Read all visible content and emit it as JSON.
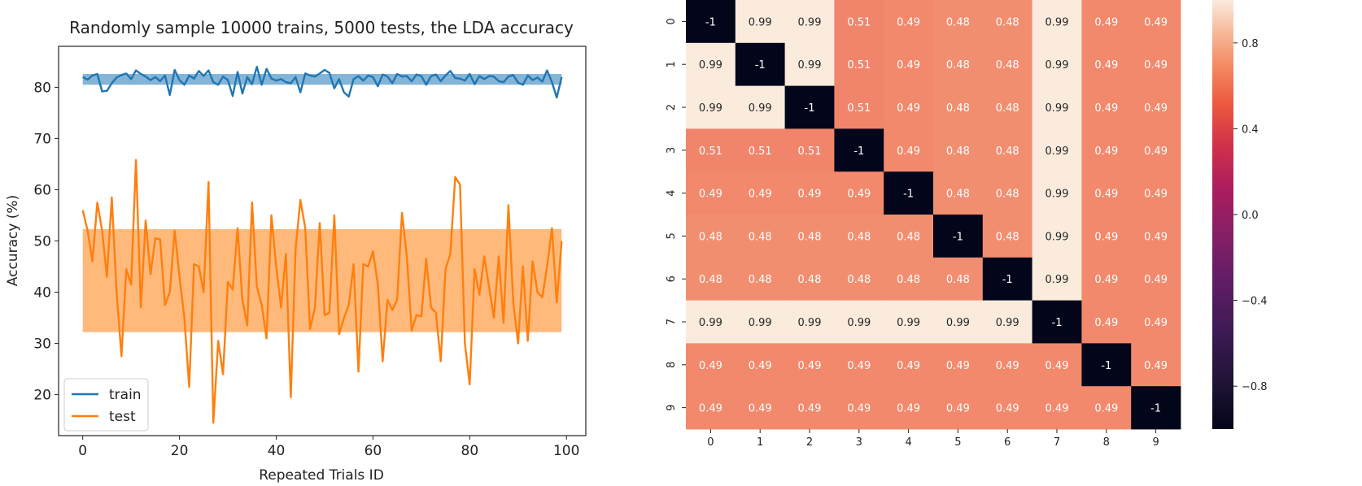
{
  "chart_data": [
    {
      "type": "line",
      "title": "Randomly sample 10000 trains, 5000 tests, the LDA accuracy",
      "xlabel": "Repeated Trials ID",
      "ylabel": "Accuracy (%)",
      "xlim": [
        -5,
        104
      ],
      "ylim": [
        12,
        88
      ],
      "xticks": [
        0,
        20,
        40,
        60,
        80,
        100
      ],
      "yticks": [
        20,
        30,
        40,
        50,
        60,
        70,
        80
      ],
      "legend_position": "lower-left",
      "series": [
        {
          "name": "train",
          "color": "#1f77b4",
          "band": [
            80.5,
            82.6
          ],
          "values": [
            82.0,
            81.5,
            82.3,
            82.6,
            79.2,
            79.3,
            80.8,
            81.9,
            82.4,
            82.7,
            81.6,
            83.3,
            82.6,
            82.1,
            81.4,
            82.0,
            81.2,
            82.3,
            78.5,
            83.4,
            81.4,
            80.5,
            82.3,
            81.7,
            83.2,
            82.2,
            83.3,
            81.0,
            80.5,
            82.1,
            81.4,
            78.3,
            83.0,
            78.8,
            82.0,
            80.6,
            84.0,
            80.5,
            83.6,
            81.7,
            81.3,
            81.6,
            81.0,
            80.8,
            82.0,
            79.0,
            82.7,
            82.3,
            82.1,
            82.7,
            83.4,
            82.8,
            79.8,
            81.6,
            79.0,
            78.2,
            81.6,
            82.2,
            81.3,
            82.3,
            82.0,
            80.2,
            82.5,
            82.1,
            80.8,
            82.6,
            82.1,
            82.2,
            81.2,
            82.5,
            82.2,
            80.5,
            82.2,
            82.5,
            81.2,
            82.3,
            83.2,
            81.8,
            81.7,
            81.3,
            82.6,
            80.6,
            82.2,
            81.6,
            82.2,
            82.1,
            81.2,
            81.0,
            82.1,
            82.4,
            80.9,
            80.5,
            82.3,
            81.4,
            81.9,
            81.1,
            83.3,
            81.0,
            78.0,
            82.0
          ]
        },
        {
          "name": "test",
          "color": "#ff7f0e",
          "band": [
            32.2,
            52.3
          ],
          "values": [
            56.0,
            52.0,
            46.0,
            57.5,
            52.0,
            43.0,
            58.5,
            40.0,
            27.5,
            44.5,
            41.5,
            65.8,
            37.0,
            54.0,
            43.5,
            50.5,
            50.3,
            37.5,
            40.0,
            52.0,
            43.0,
            35.0,
            21.5,
            45.5,
            45.0,
            40.0,
            61.5,
            14.5,
            30.5,
            24.0,
            42.0,
            40.5,
            52.5,
            38.5,
            33.5,
            57.5,
            41.0,
            37.5,
            31.0,
            55.0,
            45.0,
            37.0,
            47.5,
            19.5,
            48.5,
            58.0,
            52.5,
            32.8,
            37.0,
            53.5,
            35.5,
            36.0,
            55.0,
            31.8,
            35.0,
            37.5,
            45.5,
            24.5,
            45.5,
            45.0,
            48.0,
            41.5,
            26.5,
            38.5,
            36.5,
            38.5,
            55.5,
            47.0,
            32.5,
            35.5,
            35.3,
            46.5,
            37.0,
            36.0,
            26.5,
            44.5,
            47.5,
            62.5,
            61.0,
            30.0,
            22.0,
            44.5,
            39.5,
            47.0,
            41.0,
            35.0,
            47.0,
            34.0,
            57.0,
            38.0,
            30.0,
            45.0,
            30.5,
            46.0,
            40.0,
            39.0,
            45.0,
            52.5,
            38.0,
            50.0
          ]
        }
      ]
    },
    {
      "type": "heatmap",
      "row_labels": [
        "0",
        "1",
        "2",
        "3",
        "4",
        "5",
        "6",
        "7",
        "8",
        "9"
      ],
      "col_labels": [
        "0",
        "1",
        "2",
        "3",
        "4",
        "5",
        "6",
        "7",
        "8",
        "9"
      ],
      "values": [
        [
          -1,
          0.99,
          0.99,
          0.51,
          0.49,
          0.48,
          0.48,
          0.99,
          0.49,
          0.49
        ],
        [
          0.99,
          -1,
          0.99,
          0.51,
          0.49,
          0.48,
          0.48,
          0.99,
          0.49,
          0.49
        ],
        [
          0.99,
          0.99,
          -1,
          0.51,
          0.49,
          0.48,
          0.48,
          0.99,
          0.49,
          0.49
        ],
        [
          0.51,
          0.51,
          0.51,
          -1,
          0.49,
          0.48,
          0.48,
          0.99,
          0.49,
          0.49
        ],
        [
          0.49,
          0.49,
          0.49,
          0.49,
          -1,
          0.48,
          0.48,
          0.99,
          0.49,
          0.49
        ],
        [
          0.48,
          0.48,
          0.48,
          0.48,
          0.48,
          -1,
          0.48,
          0.99,
          0.49,
          0.49
        ],
        [
          0.48,
          0.48,
          0.48,
          0.48,
          0.48,
          0.48,
          -1,
          0.99,
          0.49,
          0.49
        ],
        [
          0.99,
          0.99,
          0.99,
          0.99,
          0.99,
          0.99,
          0.99,
          -1,
          0.49,
          0.49
        ],
        [
          0.49,
          0.49,
          0.49,
          0.49,
          0.49,
          0.49,
          0.49,
          0.49,
          -1,
          0.49
        ],
        [
          0.49,
          0.49,
          0.49,
          0.49,
          0.49,
          0.49,
          0.49,
          0.49,
          0.49,
          -1
        ]
      ],
      "colorbar": {
        "range": [
          -1,
          1
        ],
        "ticks": [
          0.8,
          0.4,
          0.0,
          -0.4,
          -0.8
        ],
        "tick_labels": [
          "0.8",
          "0.4",
          "0.0",
          "−0.4",
          "−0.8"
        ],
        "colormap": "rocket"
      }
    }
  ]
}
